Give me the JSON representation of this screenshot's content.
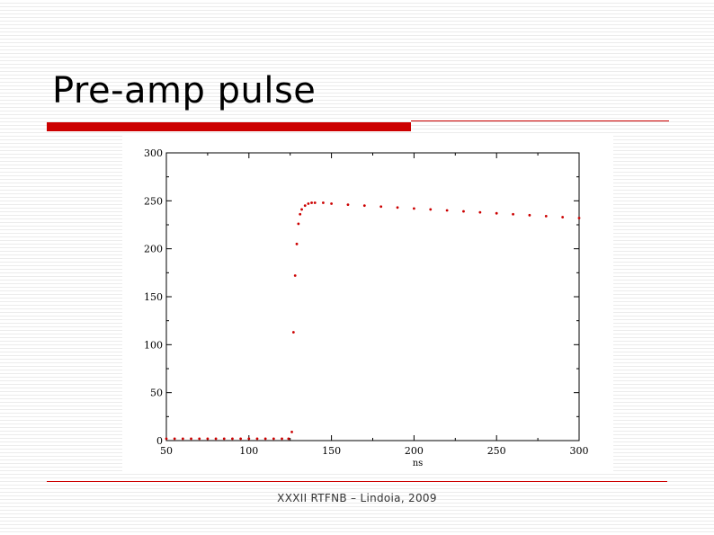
{
  "slide": {
    "title": "Pre-amp pulse",
    "footer": "XXXII RTFNB – Lindoia, 2009",
    "accent_color": "#cc0000"
  },
  "chart_data": {
    "type": "scatter",
    "title": "",
    "xlabel": "ns",
    "ylabel": "",
    "xlim": [
      50,
      300
    ],
    "ylim": [
      0,
      300
    ],
    "xticks": [
      50,
      100,
      150,
      200,
      250,
      300
    ],
    "yticks": [
      0,
      50,
      100,
      150,
      200,
      250,
      300
    ],
    "x_tick_labels": [
      "50",
      "100",
      "150",
      "200",
      "250",
      "300"
    ],
    "y_tick_labels": [
      "0",
      "50",
      "100",
      "150",
      "200",
      "250",
      "300"
    ],
    "grid": false,
    "zero_line": true,
    "series": [
      {
        "color": "#cc0000",
        "x": [
          50,
          55,
          60,
          65,
          70,
          75,
          80,
          85,
          90,
          95,
          100,
          105,
          110,
          115,
          120,
          124,
          126,
          127,
          128,
          129,
          130,
          131,
          132,
          134,
          136,
          138,
          140,
          145,
          150,
          160,
          170,
          180,
          190,
          200,
          210,
          220,
          230,
          240,
          250,
          260,
          270,
          280,
          290,
          300
        ],
        "y": [
          2,
          2,
          2,
          2,
          2,
          2,
          2,
          2,
          2,
          2,
          2,
          2,
          2,
          2,
          2,
          2,
          9,
          113,
          172,
          205,
          226,
          236,
          241,
          245,
          247,
          248,
          248,
          248,
          247,
          246,
          245,
          244,
          243,
          242,
          241,
          240,
          239,
          238,
          237,
          236,
          235,
          234,
          233,
          232
        ]
      }
    ]
  }
}
